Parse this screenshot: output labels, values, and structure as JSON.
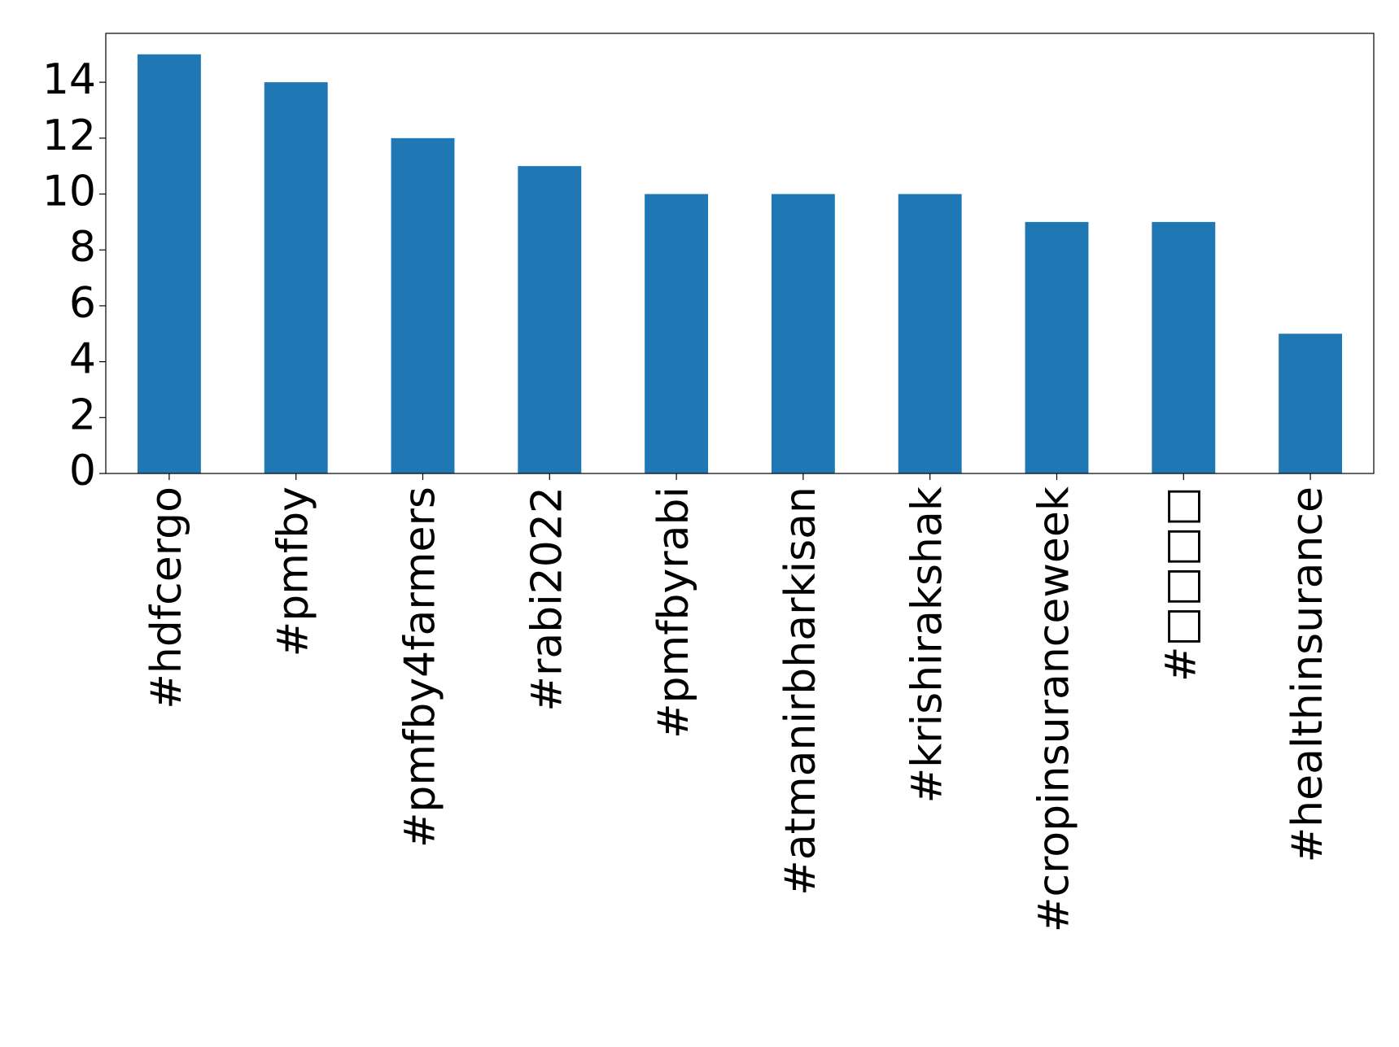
{
  "chart_data": {
    "type": "bar",
    "categories": [
      "#hdfcergo",
      "#pmfby",
      "#pmfby4farmers",
      "#rabi2022",
      "#pmfbyrabi",
      "#atmanirbharkisan",
      "#krishirakshak",
      "#cropinsuranceweek",
      "#□□□□",
      "#healthinsurance"
    ],
    "values": [
      15,
      14,
      12,
      11,
      10,
      10,
      10,
      9,
      9,
      5
    ],
    "color": "#1f77b4",
    "ylim": [
      0,
      15.75
    ],
    "yticks": [
      0,
      2,
      4,
      6,
      8,
      10,
      12,
      14
    ],
    "grid": false
  }
}
